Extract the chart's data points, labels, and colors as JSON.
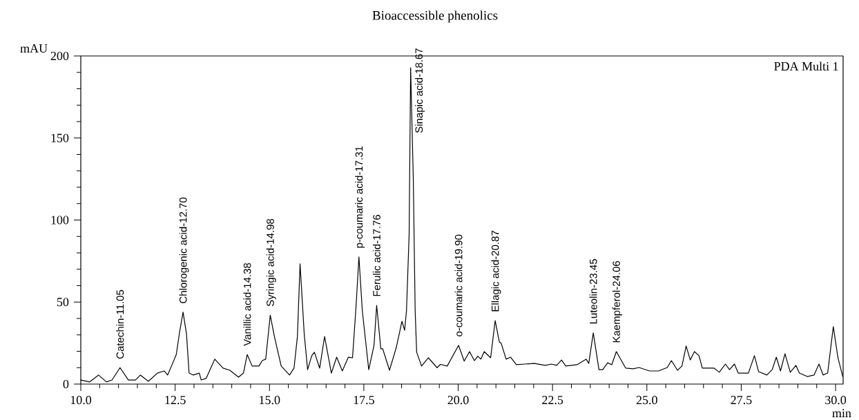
{
  "chart_data": {
    "type": "line",
    "title": "Bioaccessible phenolics",
    "xlabel": "min",
    "ylabel": "mAU",
    "color": "#000000",
    "x": [
      10.0,
      10.23,
      10.47,
      10.68,
      10.83,
      11.04,
      11.26,
      11.45,
      11.58,
      11.79,
      12.03,
      12.21,
      12.3,
      12.44,
      12.53,
      12.62,
      12.71,
      12.8,
      12.87,
      12.98,
      13.14,
      13.19,
      13.32,
      13.55,
      13.77,
      13.95,
      14.18,
      14.31,
      14.41,
      14.54,
      14.72,
      14.81,
      14.9,
      15.02,
      15.13,
      15.31,
      15.53,
      15.65,
      15.74,
      15.81,
      15.92,
      16.01,
      16.12,
      16.19,
      16.33,
      16.46,
      16.64,
      16.78,
      16.93,
      17.09,
      17.2,
      17.29,
      17.37,
      17.46,
      17.63,
      17.77,
      17.84,
      17.95,
      18.0,
      18.18,
      18.36,
      18.51,
      18.58,
      18.63,
      18.7,
      18.74,
      18.81,
      18.86,
      18.9,
      19.03,
      19.21,
      19.44,
      19.53,
      19.71,
      20.01,
      20.16,
      20.3,
      20.43,
      20.52,
      20.6,
      20.69,
      20.86,
      20.98,
      21.09,
      21.14,
      21.27,
      21.39,
      21.54,
      21.77,
      22.02,
      22.31,
      22.47,
      22.61,
      22.74,
      22.85,
      23.15,
      23.39,
      23.46,
      23.58,
      23.73,
      23.83,
      23.96,
      24.07,
      24.19,
      24.44,
      24.64,
      24.79,
      25.07,
      25.31,
      25.54,
      25.65,
      25.81,
      25.93,
      26.04,
      26.15,
      26.26,
      26.38,
      26.47,
      26.78,
      26.92,
      27.08,
      27.19,
      27.32,
      27.42,
      27.69,
      27.85,
      27.96,
      28.18,
      28.32,
      28.43,
      28.54,
      28.66,
      28.8,
      28.95,
      29.04,
      29.25,
      29.43,
      29.56,
      29.67,
      29.79,
      29.94,
      30.06,
      30.19
    ],
    "values": [
      2.5,
      1.3,
      5.5,
      1.3,
      2.5,
      10,
      2.5,
      2.5,
      5.5,
      1.7,
      6.7,
      8,
      5.5,
      13,
      18,
      32,
      43.8,
      30.7,
      6.7,
      5.5,
      6.7,
      2.5,
      3.4,
      15.2,
      9.7,
      8.4,
      4.2,
      6.7,
      18,
      11,
      11,
      14.3,
      15.2,
      42,
      29,
      11,
      5.5,
      9.7,
      29,
      73.3,
      30.7,
      8.8,
      17.3,
      19.4,
      9.7,
      29,
      6.7,
      16.4,
      8,
      16.4,
      16,
      46,
      77.5,
      44.6,
      8.8,
      23.6,
      48,
      21.5,
      21.5,
      8.4,
      22.3,
      38.3,
      32.8,
      44.6,
      91,
      192.8,
      126,
      44.6,
      19.4,
      11,
      16,
      10,
      12,
      11,
      23.6,
      14,
      19.8,
      14.3,
      17,
      15.2,
      19.8,
      16,
      38.7,
      25.7,
      24.8,
      15.2,
      16.4,
      11.8,
      12.2,
      12.6,
      11.4,
      12.2,
      11.4,
      14.7,
      11,
      11.8,
      15.2,
      12.6,
      31.2,
      8.8,
      8.8,
      13,
      11.8,
      19.8,
      9.7,
      9.3,
      10.1,
      8,
      8,
      10.1,
      14.3,
      8.4,
      11,
      23.2,
      14.7,
      19.8,
      17.3,
      9.7,
      9.7,
      7.2,
      12.2,
      8.8,
      12.2,
      6.7,
      6.7,
      17.3,
      7.6,
      5.5,
      8.8,
      16.4,
      8,
      18.5,
      7.2,
      11.4,
      6.7,
      4.6,
      5.5,
      12.2,
      5.5,
      6.7,
      35,
      16.4,
      4.6
    ],
    "xlim": [
      10,
      30.2
    ],
    "ylim": [
      0,
      200
    ],
    "xticks": [
      {
        "value": 10,
        "label": "10.0"
      },
      {
        "value": 10.5,
        "label": null
      },
      {
        "value": 11,
        "label": null
      },
      {
        "value": 11.5,
        "label": null
      },
      {
        "value": 12,
        "label": null
      },
      {
        "value": 12.5,
        "label": "12.5"
      },
      {
        "value": 13,
        "label": null
      },
      {
        "value": 13.5,
        "label": null
      },
      {
        "value": 14,
        "label": null
      },
      {
        "value": 14.5,
        "label": null
      },
      {
        "value": 15,
        "label": "15.0"
      },
      {
        "value": 15.5,
        "label": null
      },
      {
        "value": 16,
        "label": null
      },
      {
        "value": 16.5,
        "label": null
      },
      {
        "value": 17,
        "label": null
      },
      {
        "value": 17.5,
        "label": "17.5"
      },
      {
        "value": 18,
        "label": null
      },
      {
        "value": 18.5,
        "label": null
      },
      {
        "value": 19,
        "label": null
      },
      {
        "value": 19.5,
        "label": null
      },
      {
        "value": 20,
        "label": "20.0"
      },
      {
        "value": 20.5,
        "label": null
      },
      {
        "value": 21,
        "label": null
      },
      {
        "value": 21.5,
        "label": null
      },
      {
        "value": 22,
        "label": null
      },
      {
        "value": 22.5,
        "label": "22.5"
      },
      {
        "value": 23,
        "label": null
      },
      {
        "value": 23.5,
        "label": null
      },
      {
        "value": 24,
        "label": null
      },
      {
        "value": 24.5,
        "label": null
      },
      {
        "value": 25,
        "label": "25.0"
      },
      {
        "value": 25.5,
        "label": null
      },
      {
        "value": 26,
        "label": null
      },
      {
        "value": 26.5,
        "label": null
      },
      {
        "value": 27,
        "label": null
      },
      {
        "value": 27.5,
        "label": "27.5"
      },
      {
        "value": 28,
        "label": null
      },
      {
        "value": 28.5,
        "label": null
      },
      {
        "value": 29,
        "label": null
      },
      {
        "value": 29.5,
        "label": null
      },
      {
        "value": 30,
        "label": "30.0"
      }
    ],
    "yticks": [
      0,
      {
        "value": 10,
        "label": null
      },
      {
        "value": 20,
        "label": null
      },
      {
        "value": 30,
        "label": null
      },
      {
        "value": 40,
        "label": null
      },
      50,
      {
        "value": 60,
        "label": null
      },
      {
        "value": 70,
        "label": null
      },
      {
        "value": 80,
        "label": null
      },
      {
        "value": 90,
        "label": null
      },
      100,
      {
        "value": 110,
        "label": null
      },
      {
        "value": 120,
        "label": null
      },
      {
        "value": 130,
        "label": null
      },
      {
        "value": 140,
        "label": null
      },
      150,
      {
        "value": 160,
        "label": null
      },
      {
        "value": 170,
        "label": null
      },
      {
        "value": 180,
        "label": null
      },
      {
        "value": 190,
        "label": null
      },
      200
    ],
    "annotations": [
      "PDA Multi 1",
      {
        "text": "Catechin-11.05",
        "x": 11.04,
        "y": 10
      },
      {
        "text": "Chlorogenic acid-12.70",
        "x": 12.71,
        "y": 43.8
      },
      {
        "text": "Vanillic acid-14.38",
        "x": 14.41,
        "y": 18
      },
      {
        "text": "Syringic acid-14.98",
        "x": 15.02,
        "y": 42
      },
      {
        "text": "p-coumaric acid-17.31",
        "x": 17.37,
        "y": 77.5
      },
      {
        "text": "Ferulic acid-17.76",
        "x": 17.84,
        "y": 48
      },
      {
        "text": "Sinapic acid-18.67",
        "x": 18.74,
        "y": 192.8
      },
      {
        "text": "o-coumaric acid-19.90",
        "x": 20.01,
        "y": 23.6
      },
      {
        "text": "Ellagic acid-20.87",
        "x": 20.98,
        "y": 38.7
      },
      {
        "text": "Luteolin-23.45",
        "x": 23.58,
        "y": 31.2
      },
      {
        "text": "Kaempferol-24.06",
        "x": 24.19,
        "y": 19.8
      }
    ]
  }
}
